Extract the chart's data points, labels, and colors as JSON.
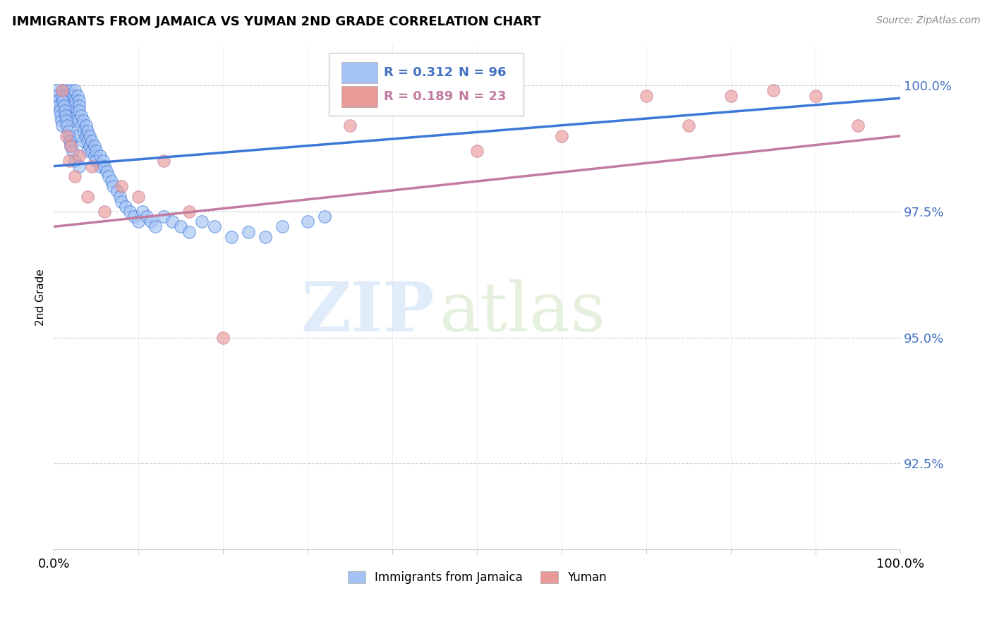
{
  "title": "IMMIGRANTS FROM JAMAICA VS YUMAN 2ND GRADE CORRELATION CHART",
  "source": "Source: ZipAtlas.com",
  "ylabel": "2nd Grade",
  "ytick_labels": [
    "92.5%",
    "95.0%",
    "97.5%",
    "100.0%"
  ],
  "ytick_values": [
    0.925,
    0.95,
    0.975,
    1.0
  ],
  "xmin": 0.0,
  "xmax": 1.0,
  "ymin": 0.908,
  "ymax": 1.008,
  "blue_R": 0.312,
  "blue_N": 96,
  "pink_R": 0.189,
  "pink_N": 23,
  "blue_color": "#a4c2f4",
  "pink_color": "#ea9999",
  "blue_line_color": "#3c78d8",
  "pink_line_color": "#c27ba0",
  "legend_text_blue": "#4472c4",
  "legend_text_pink": "#c27ba0",
  "legend_label_blue": "Immigrants from Jamaica",
  "legend_label_pink": "Yuman",
  "blue_trend_x0": 0.0,
  "blue_trend_x1": 1.0,
  "blue_trend_y0": 0.984,
  "blue_trend_y1": 0.9975,
  "pink_trend_x0": 0.0,
  "pink_trend_x1": 1.0,
  "pink_trend_y0": 0.972,
  "pink_trend_y1": 0.99,
  "blue_scatter_x": [
    0.005,
    0.008,
    0.01,
    0.01,
    0.012,
    0.012,
    0.015,
    0.015,
    0.015,
    0.018,
    0.018,
    0.02,
    0.02,
    0.02,
    0.022,
    0.022,
    0.025,
    0.025,
    0.025,
    0.028,
    0.028,
    0.03,
    0.03,
    0.03,
    0.03,
    0.032,
    0.032,
    0.035,
    0.035,
    0.035,
    0.038,
    0.038,
    0.04,
    0.04,
    0.04,
    0.042,
    0.042,
    0.045,
    0.045,
    0.048,
    0.048,
    0.05,
    0.05,
    0.055,
    0.055,
    0.058,
    0.06,
    0.062,
    0.065,
    0.068,
    0.07,
    0.075,
    0.078,
    0.08,
    0.085,
    0.09,
    0.095,
    0.1,
    0.105,
    0.11,
    0.115,
    0.12,
    0.13,
    0.14,
    0.15,
    0.16,
    0.175,
    0.19,
    0.21,
    0.23,
    0.25,
    0.27,
    0.3,
    0.32,
    0.002,
    0.003,
    0.005,
    0.006,
    0.007,
    0.008,
    0.009,
    0.01,
    0.01,
    0.011,
    0.012,
    0.013,
    0.014,
    0.015,
    0.016,
    0.017,
    0.018,
    0.019,
    0.02,
    0.022,
    0.025,
    0.03
  ],
  "blue_scatter_y": [
    0.998,
    0.996,
    0.999,
    0.997,
    0.998,
    0.996,
    0.999,
    0.997,
    0.995,
    0.998,
    0.996,
    0.999,
    0.997,
    0.995,
    0.998,
    0.996,
    0.999,
    0.997,
    0.993,
    0.998,
    0.99,
    0.997,
    0.996,
    0.995,
    0.993,
    0.994,
    0.992,
    0.993,
    0.991,
    0.989,
    0.992,
    0.99,
    0.991,
    0.989,
    0.987,
    0.99,
    0.988,
    0.989,
    0.987,
    0.988,
    0.986,
    0.987,
    0.985,
    0.986,
    0.984,
    0.985,
    0.984,
    0.983,
    0.982,
    0.981,
    0.98,
    0.979,
    0.978,
    0.977,
    0.976,
    0.975,
    0.974,
    0.973,
    0.975,
    0.974,
    0.973,
    0.972,
    0.974,
    0.973,
    0.972,
    0.971,
    0.973,
    0.972,
    0.97,
    0.971,
    0.97,
    0.972,
    0.973,
    0.974,
    0.999,
    0.998,
    0.997,
    0.996,
    0.995,
    0.994,
    0.993,
    0.992,
    0.998,
    0.997,
    0.996,
    0.995,
    0.994,
    0.993,
    0.992,
    0.991,
    0.99,
    0.989,
    0.988,
    0.987,
    0.985,
    0.984
  ],
  "pink_scatter_x": [
    0.01,
    0.015,
    0.018,
    0.02,
    0.025,
    0.03,
    0.04,
    0.045,
    0.06,
    0.08,
    0.1,
    0.13,
    0.16,
    0.2,
    0.35,
    0.5,
    0.6,
    0.7,
    0.75,
    0.8,
    0.85,
    0.9,
    0.95
  ],
  "pink_scatter_y": [
    0.999,
    0.99,
    0.985,
    0.988,
    0.982,
    0.986,
    0.978,
    0.984,
    0.975,
    0.98,
    0.978,
    0.985,
    0.975,
    0.95,
    0.992,
    0.987,
    0.99,
    0.998,
    0.992,
    0.998,
    0.999,
    0.998,
    0.992
  ]
}
